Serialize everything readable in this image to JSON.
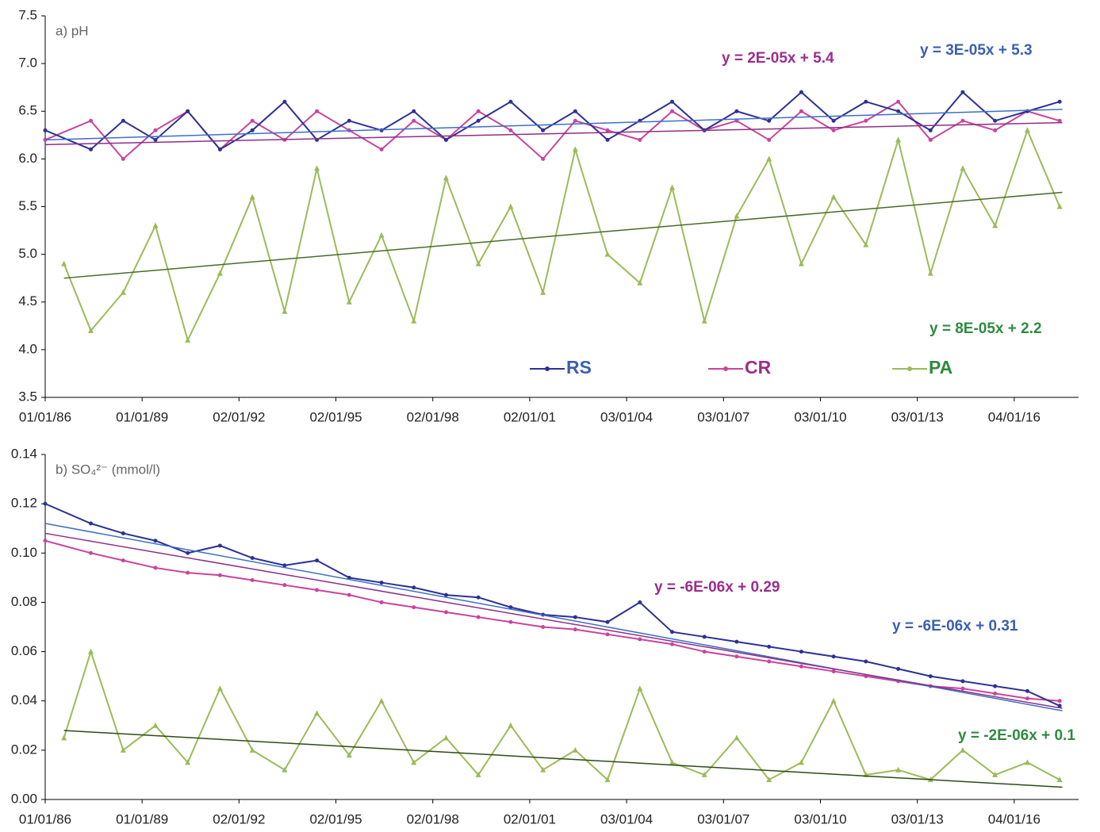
{
  "chart_data": [
    {
      "type": "line",
      "title": "a) pH",
      "xlim": [
        "1986-01-01",
        "2018-01-01"
      ],
      "xticks": [
        {
          "value": "1986-01-01",
          "label": "01/01/86"
        },
        {
          "value": "1989-01-01",
          "label": "01/01/89"
        },
        {
          "value": "1992-01-02",
          "label": "02/01/92"
        },
        {
          "value": "1995-01-02",
          "label": "02/01/95"
        },
        {
          "value": "1998-01-02",
          "label": "02/01/98"
        },
        {
          "value": "2001-01-02",
          "label": "02/01/01"
        },
        {
          "value": "2004-01-03",
          "label": "03/01/04"
        },
        {
          "value": "2007-01-03",
          "label": "03/01/07"
        },
        {
          "value": "2010-01-03",
          "label": "03/01/10"
        },
        {
          "value": "2013-01-03",
          "label": "03/01/13"
        },
        {
          "value": "2016-01-04",
          "label": "04/01/16"
        }
      ],
      "ylim": [
        3.5,
        7.5
      ],
      "yticks": [
        3.5,
        {
          "value": 4,
          "label": "4.0"
        },
        4.5,
        {
          "value": 5,
          "label": "5.0"
        },
        5.5,
        {
          "value": 6,
          "label": "6.0"
        },
        6.5,
        {
          "value": 7,
          "label": "7.0"
        },
        7.5
      ],
      "legend": "bottom",
      "series": [
        {
          "name": "RS",
          "color": "#2e3192",
          "marker": "circle",
          "trend_color": "#3d6fc4",
          "label_color": "#3b5fb0",
          "equation": "y = 3E-05x + 5.3",
          "x": [
            "1986-01-01",
            "1987-06-01",
            "1988-06-01",
            "1989-06-01",
            "1990-06-01",
            "1991-06-01",
            "1992-06-01",
            "1993-06-01",
            "1994-06-01",
            "1995-06-01",
            "1996-06-01",
            "1997-06-01",
            "1998-06-01",
            "1999-06-01",
            "2000-06-01",
            "2001-06-01",
            "2002-06-01",
            "2003-06-01",
            "2004-06-01",
            "2005-06-01",
            "2006-06-01",
            "2007-06-01",
            "2008-06-01",
            "2009-06-01",
            "2010-06-01",
            "2011-06-01",
            "2012-06-01",
            "2013-06-01",
            "2014-06-01",
            "2015-06-01",
            "2016-06-01",
            "2017-06-01"
          ],
          "values": [
            6.3,
            6.1,
            6.4,
            6.2,
            6.5,
            6.1,
            6.3,
            6.6,
            6.2,
            6.4,
            6.3,
            6.5,
            6.2,
            6.4,
            6.6,
            6.3,
            6.5,
            6.2,
            6.4,
            6.6,
            6.3,
            6.5,
            6.4,
            6.7,
            6.4,
            6.6,
            6.5,
            6.3,
            6.7,
            6.4,
            6.5,
            6.6
          ],
          "trend": {
            "x": [
              "1986-01-01",
              "2017-07-01"
            ],
            "values": [
              6.2,
              6.52
            ]
          }
        },
        {
          "name": "CR",
          "color": "#c9449e",
          "marker": "circle",
          "trend_color": "#8e2f86",
          "label_color": "#9b2d8c",
          "equation": "y = 2E-05x + 5.4",
          "x": [
            "1986-01-01",
            "1987-06-01",
            "1988-06-01",
            "1989-06-01",
            "1990-06-01",
            "1991-06-01",
            "1992-06-01",
            "1993-06-01",
            "1994-06-01",
            "1995-06-01",
            "1996-06-01",
            "1997-06-01",
            "1998-06-01",
            "1999-06-01",
            "2000-06-01",
            "2001-06-01",
            "2002-06-01",
            "2003-06-01",
            "2004-06-01",
            "2005-06-01",
            "2006-06-01",
            "2007-06-01",
            "2008-06-01",
            "2009-06-01",
            "2010-06-01",
            "2011-06-01",
            "2012-06-01",
            "2013-06-01",
            "2014-06-01",
            "2015-06-01",
            "2016-06-01",
            "2017-06-01"
          ],
          "values": [
            6.2,
            6.4,
            6.0,
            6.3,
            6.5,
            6.1,
            6.4,
            6.2,
            6.5,
            6.3,
            6.1,
            6.4,
            6.2,
            6.5,
            6.3,
            6.0,
            6.4,
            6.3,
            6.2,
            6.5,
            6.3,
            6.4,
            6.2,
            6.5,
            6.3,
            6.4,
            6.6,
            6.2,
            6.4,
            6.3,
            6.5,
            6.4
          ],
          "trend": {
            "x": [
              "1986-01-01",
              "2017-07-01"
            ],
            "values": [
              6.15,
              6.38
            ]
          }
        },
        {
          "name": "PA",
          "color": "#9bbb59",
          "marker": "triangle",
          "trend_color": "#4a6b2a",
          "label_color": "#2e8b3e",
          "equation": "y = 8E-05x + 2.2",
          "x": [
            "1986-08-01",
            "1987-06-01",
            "1988-06-01",
            "1989-06-01",
            "1990-06-01",
            "1991-06-01",
            "1992-06-01",
            "1993-06-01",
            "1994-06-01",
            "1995-06-01",
            "1996-06-01",
            "1997-06-01",
            "1998-06-01",
            "1999-06-01",
            "2000-06-01",
            "2001-06-01",
            "2002-06-01",
            "2003-06-01",
            "2004-06-01",
            "2005-06-01",
            "2006-06-01",
            "2007-06-01",
            "2008-06-01",
            "2009-06-01",
            "2010-06-01",
            "2011-06-01",
            "2012-06-01",
            "2013-06-01",
            "2014-06-01",
            "2015-06-01",
            "2016-06-01",
            "2017-06-01"
          ],
          "values": [
            4.9,
            4.2,
            4.6,
            5.3,
            4.1,
            4.8,
            5.6,
            4.4,
            5.9,
            4.5,
            5.2,
            4.3,
            5.8,
            4.9,
            5.5,
            4.6,
            6.1,
            5.0,
            4.7,
            5.7,
            4.3,
            5.4,
            6.0,
            4.9,
            5.6,
            5.1,
            6.2,
            4.8,
            5.9,
            5.3,
            6.3,
            5.5
          ],
          "trend": {
            "x": [
              "1986-08-01",
              "2017-07-01"
            ],
            "values": [
              4.75,
              5.65
            ]
          }
        }
      ]
    },
    {
      "type": "line",
      "title": "b) SO₄²⁻ (mmol/l)",
      "xlim": [
        "1986-01-01",
        "2018-01-01"
      ],
      "xticks": [
        {
          "value": "1986-01-01",
          "label": "01/01/86"
        },
        {
          "value": "1989-01-01",
          "label": "01/01/89"
        },
        {
          "value": "1992-01-02",
          "label": "02/01/92"
        },
        {
          "value": "1995-01-02",
          "label": "02/01/95"
        },
        {
          "value": "1998-01-02",
          "label": "02/01/98"
        },
        {
          "value": "2001-01-02",
          "label": "02/01/01"
        },
        {
          "value": "2004-01-03",
          "label": "03/01/04"
        },
        {
          "value": "2007-01-03",
          "label": "03/01/07"
        },
        {
          "value": "2010-01-03",
          "label": "03/01/10"
        },
        {
          "value": "2013-01-03",
          "label": "03/01/13"
        },
        {
          "value": "2016-01-04",
          "label": "04/01/16"
        }
      ],
      "ylim": [
        0,
        0.14
      ],
      "yticks": [
        {
          "value": 0,
          "label": "0.00"
        },
        {
          "value": 0.02,
          "label": "0.02"
        },
        {
          "value": 0.04,
          "label": "0.04"
        },
        {
          "value": 0.06,
          "label": "0.06"
        },
        {
          "value": 0.08,
          "label": "0.08"
        },
        {
          "value": 0.1,
          "label": "0.10"
        },
        {
          "value": 0.12,
          "label": "0.12"
        },
        {
          "value": 0.14,
          "label": "0.14"
        }
      ],
      "series": [
        {
          "color": "#2e3192",
          "marker": "circle",
          "trend_color": "#3d6fc4",
          "label_color": "#3b5fb0",
          "equation": "y = -6E-06x + 0.31",
          "x": [
            "1986-01-01",
            "1987-06-01",
            "1988-06-01",
            "1989-06-01",
            "1990-06-01",
            "1991-06-01",
            "1992-06-01",
            "1993-06-01",
            "1994-06-01",
            "1995-06-01",
            "1996-06-01",
            "1997-06-01",
            "1998-06-01",
            "1999-06-01",
            "2000-06-01",
            "2001-06-01",
            "2002-06-01",
            "2003-06-01",
            "2004-06-01",
            "2005-06-01",
            "2006-06-01",
            "2007-06-01",
            "2008-06-01",
            "2009-06-01",
            "2010-06-01",
            "2011-06-01",
            "2012-06-01",
            "2013-06-01",
            "2014-06-01",
            "2015-06-01",
            "2016-06-01",
            "2017-06-01"
          ],
          "values": [
            0.12,
            0.112,
            0.108,
            0.105,
            0.1,
            0.103,
            0.098,
            0.095,
            0.097,
            0.09,
            0.088,
            0.086,
            0.083,
            0.082,
            0.078,
            0.075,
            0.074,
            0.072,
            0.08,
            0.068,
            0.066,
            0.064,
            0.062,
            0.06,
            0.058,
            0.056,
            0.053,
            0.05,
            0.048,
            0.046,
            0.044,
            0.038
          ],
          "trend": {
            "x": [
              "1986-01-01",
              "2017-07-01"
            ],
            "values": [
              0.112,
              0.036
            ]
          }
        },
        {
          "color": "#c9449e",
          "marker": "circle",
          "trend_color": "#8e2f86",
          "label_color": "#9b2d8c",
          "equation": "y = -6E-06x + 0.29",
          "x": [
            "1986-01-01",
            "1987-06-01",
            "1988-06-01",
            "1989-06-01",
            "1990-06-01",
            "1991-06-01",
            "1992-06-01",
            "1993-06-01",
            "1994-06-01",
            "1995-06-01",
            "1996-06-01",
            "1997-06-01",
            "1998-06-01",
            "1999-06-01",
            "2000-06-01",
            "2001-06-01",
            "2002-06-01",
            "2003-06-01",
            "2004-06-01",
            "2005-06-01",
            "2006-06-01",
            "2007-06-01",
            "2008-06-01",
            "2009-06-01",
            "2010-06-01",
            "2011-06-01",
            "2012-06-01",
            "2013-06-01",
            "2014-06-01",
            "2015-06-01",
            "2016-06-01",
            "2017-06-01"
          ],
          "values": [
            0.105,
            0.1,
            0.097,
            0.094,
            0.092,
            0.091,
            0.089,
            0.087,
            0.085,
            0.083,
            0.08,
            0.078,
            0.076,
            0.074,
            0.072,
            0.07,
            0.069,
            0.067,
            0.065,
            0.063,
            0.06,
            0.058,
            0.056,
            0.054,
            0.052,
            0.05,
            0.048,
            0.046,
            0.045,
            0.043,
            0.041,
            0.04
          ],
          "trend": {
            "x": [
              "1986-01-01",
              "2017-07-01"
            ],
            "values": [
              0.108,
              0.037
            ]
          }
        },
        {
          "color": "#9bbb59",
          "marker": "triangle",
          "trend_color": "#2f4a1a",
          "label_color": "#2e8b3e",
          "equation": "y = -2E-06x + 0.1",
          "x": [
            "1986-08-01",
            "1987-06-01",
            "1988-06-01",
            "1989-06-01",
            "1990-06-01",
            "1991-06-01",
            "1992-06-01",
            "1993-06-01",
            "1994-06-01",
            "1995-06-01",
            "1996-06-01",
            "1997-06-01",
            "1998-06-01",
            "1999-06-01",
            "2000-06-01",
            "2001-06-01",
            "2002-06-01",
            "2003-06-01",
            "2004-06-01",
            "2005-06-01",
            "2006-06-01",
            "2007-06-01",
            "2008-06-01",
            "2009-06-01",
            "2010-06-01",
            "2011-06-01",
            "2012-06-01",
            "2013-06-01",
            "2014-06-01",
            "2015-06-01",
            "2016-06-01",
            "2017-06-01"
          ],
          "values": [
            0.025,
            0.06,
            0.02,
            0.03,
            0.015,
            0.045,
            0.02,
            0.012,
            0.035,
            0.018,
            0.04,
            0.015,
            0.025,
            0.01,
            0.03,
            0.012,
            0.02,
            0.008,
            0.045,
            0.015,
            0.01,
            0.025,
            0.008,
            0.015,
            0.04,
            0.01,
            0.012,
            0.008,
            0.02,
            0.01,
            0.015,
            0.008
          ],
          "trend": {
            "x": [
              "1986-08-01",
              "2017-07-01"
            ],
            "values": [
              0.028,
              0.005
            ]
          }
        }
      ]
    }
  ]
}
